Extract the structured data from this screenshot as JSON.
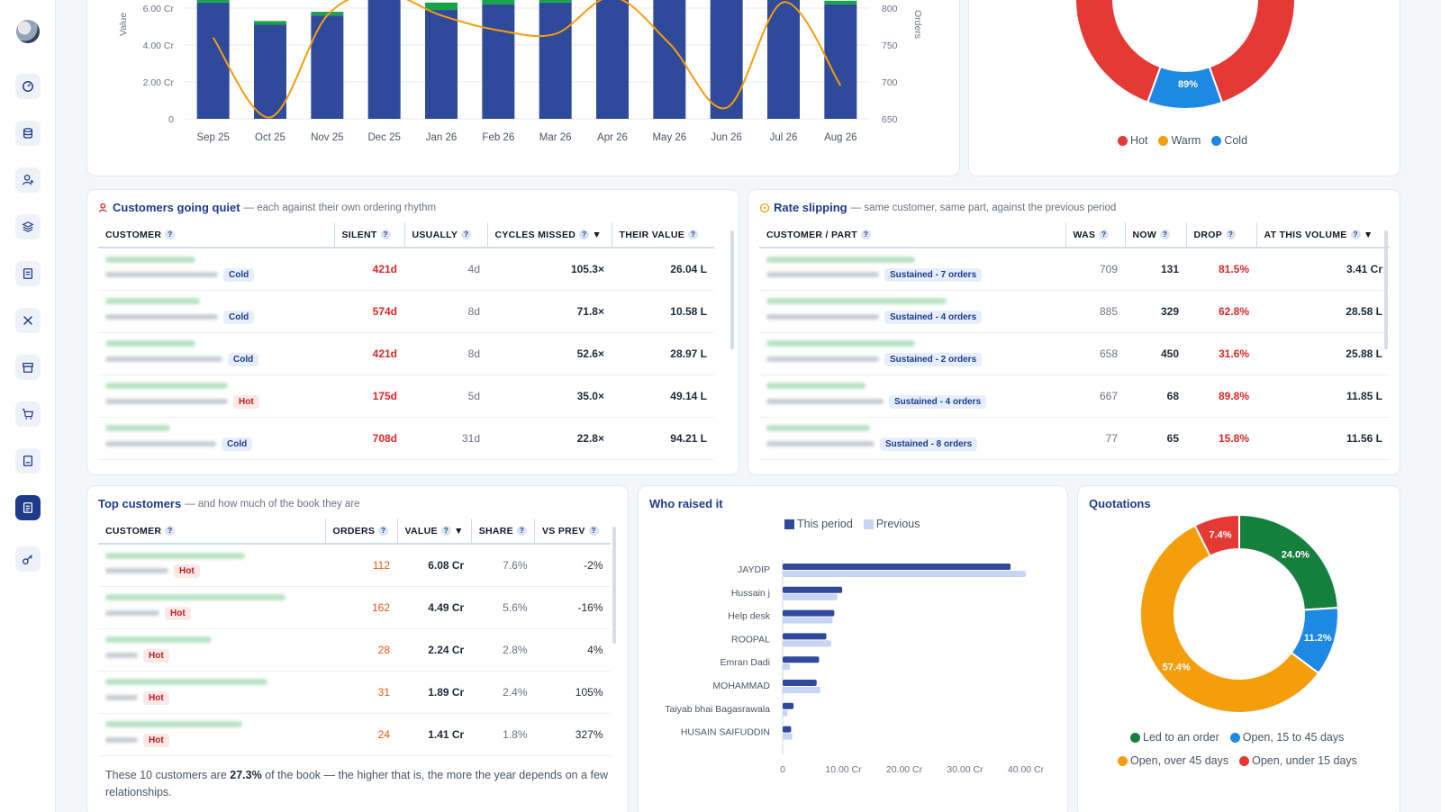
{
  "colors": {
    "navy": "#2f4a9a",
    "green": "#16a34a",
    "orange": "#f59e0b",
    "red": "#e53935",
    "blue": "#1e88e5",
    "light_blue": "#c7d4f3",
    "quote_green": "#15803d",
    "quote_blue": "#1e88e5",
    "quote_orange": "#f59e0b",
    "quote_red": "#e53935"
  },
  "sidebar": {
    "icons": [
      "logo-icon",
      "dashboard-icon",
      "database-icon",
      "user-add-icon",
      "layers-icon",
      "document-icon",
      "tools-icon",
      "archive-icon",
      "cart-icon",
      "ledger-icon",
      "report-icon",
      "key-icon"
    ]
  },
  "chart_data": [
    {
      "type": "bar",
      "categories": [
        "Sep 25",
        "Oct 25",
        "Nov 25",
        "Dec 25",
        "Jan 26",
        "Feb 26",
        "Mar 26",
        "Apr 26",
        "May 26",
        "Jun 26",
        "Jul 26",
        "Aug 26"
      ],
      "series": [
        {
          "values": [
            6.3,
            5.1,
            5.6,
            6.5,
            5.9,
            6.2,
            6.3,
            6.7,
            7.0,
            7.5,
            7.3,
            6.2
          ]
        },
        {
          "values": [
            0.4,
            0.2,
            0.2,
            0.5,
            0.4,
            0.3,
            0.2,
            0.4,
            0.5,
            0.4,
            0.6,
            0.2
          ]
        },
        {
          "values": [
            760,
            652,
            790,
            820,
            790,
            770,
            765,
            815,
            752,
            665,
            808,
            695
          ],
          "axis": "right"
        }
      ],
      "ylabel": "Value",
      "y2label": "Orders",
      "yticks": [
        "0",
        "2.00 Cr",
        "4.00 Cr",
        "6.00 Cr"
      ],
      "y2ticks": [
        "650",
        "700",
        "750",
        "800"
      ],
      "ylim": [
        0,
        7.5
      ],
      "y2lim": [
        650,
        830
      ]
    },
    {
      "type": "pie",
      "categories": [
        "Hot",
        "Warm",
        "Cold"
      ],
      "values": [
        89,
        0,
        11
      ],
      "labels": [
        "89%"
      ],
      "legend": [
        "Hot",
        "Warm",
        "Cold"
      ]
    },
    {
      "type": "bar",
      "orientation": "horizontal",
      "title": "Who raised it",
      "categories": [
        "JAYDIP",
        "Hussain j",
        "Help desk",
        "ROOPAL",
        "Emran Dadi",
        "MOHAMMAD",
        "Taiyab bhai Bagasrawala",
        "HUSAIN SAIFUDDIN"
      ],
      "series": [
        {
          "name": "This period",
          "values": [
            37.5,
            9.8,
            8.5,
            7.2,
            6.0,
            5.6,
            1.8,
            1.4
          ]
        },
        {
          "name": "Previous",
          "values": [
            40.0,
            9.0,
            8.2,
            8.0,
            1.2,
            6.2,
            0.8,
            1.6
          ]
        }
      ],
      "xticks": [
        "0",
        "10.00 Cr",
        "20.00 Cr",
        "30.00 Cr",
        "40.00 Cr"
      ],
      "xlim": [
        0,
        42
      ]
    },
    {
      "type": "pie",
      "title": "Quotations",
      "categories": [
        "Led to an order",
        "Open, 15 to 45 days",
        "Open, over 45 days",
        "Open, under 15 days"
      ],
      "values": [
        24.0,
        11.2,
        57.4,
        7.4
      ],
      "labels": [
        "24.0%",
        "11.2%",
        "57.4%",
        "7.4%"
      ]
    }
  ],
  "lead_legend": [
    {
      "label": "Hot",
      "color": "#e53935"
    },
    {
      "label": "Warm",
      "color": "#f59e0b"
    },
    {
      "label": "Cold",
      "color": "#1e88e5"
    }
  ],
  "quiet": {
    "title": "Customers going quiet",
    "subtitle": "— each against their own ordering rhythm",
    "headers": [
      "CUSTOMER",
      "SILENT",
      "USUALLY",
      "CYCLES MISSED",
      "THEIR VALUE"
    ],
    "sort_mark": "▼",
    "rows": [
      {
        "tag": "Cold",
        "silent": "421d",
        "usually": "4d",
        "cycles": "105.3×",
        "value": "26.04 L"
      },
      {
        "tag": "Cold",
        "silent": "574d",
        "usually": "8d",
        "cycles": "71.8×",
        "value": "10.58 L"
      },
      {
        "tag": "Cold",
        "silent": "421d",
        "usually": "8d",
        "cycles": "52.6×",
        "value": "28.97 L"
      },
      {
        "tag": "Hot",
        "silent": "175d",
        "usually": "5d",
        "cycles": "35.0×",
        "value": "49.14 L"
      },
      {
        "tag": "Cold",
        "silent": "708d",
        "usually": "31d",
        "cycles": "22.8×",
        "value": "94.21 L"
      }
    ]
  },
  "rate": {
    "title": "Rate slipping",
    "subtitle": "— same customer, same part, against the previous period",
    "headers": [
      "CUSTOMER / PART",
      "WAS",
      "NOW",
      "DROP",
      "AT THIS VOLUME"
    ],
    "sort_mark": "▼",
    "rows": [
      {
        "tag": "Sustained - 7 orders",
        "was": "709",
        "now": "131",
        "drop": "81.5%",
        "vol": "3.41 Cr"
      },
      {
        "tag": "Sustained - 4 orders",
        "was": "885",
        "now": "329",
        "drop": "62.8%",
        "vol": "28.58 L"
      },
      {
        "tag": "Sustained - 2 orders",
        "was": "658",
        "now": "450",
        "drop": "31.6%",
        "vol": "25.88 L"
      },
      {
        "tag": "Sustained - 4 orders",
        "was": "667",
        "now": "68",
        "drop": "89.8%",
        "vol": "11.85 L"
      },
      {
        "tag": "Sustained - 8 orders",
        "was": "77",
        "now": "65",
        "drop": "15.8%",
        "vol": "11.56 L"
      }
    ]
  },
  "top": {
    "title": "Top customers",
    "subtitle": "— and how much of the book they are",
    "headers": [
      "CUSTOMER",
      "ORDERS",
      "VALUE",
      "SHARE",
      "VS PREV"
    ],
    "sort_mark": "▼",
    "rows": [
      {
        "tag": "Hot",
        "orders": "112",
        "value": "6.08 Cr",
        "share": "7.6%",
        "prev": "-2%"
      },
      {
        "tag": "Hot",
        "orders": "162",
        "value": "4.49 Cr",
        "share": "5.6%",
        "prev": "-16%"
      },
      {
        "tag": "Hot",
        "orders": "28",
        "value": "2.24 Cr",
        "share": "2.8%",
        "prev": "4%"
      },
      {
        "tag": "Hot",
        "orders": "31",
        "value": "1.89 Cr",
        "share": "2.4%",
        "prev": "105%"
      },
      {
        "tag": "Hot",
        "orders": "24",
        "value": "1.41 Cr",
        "share": "1.8%",
        "prev": "327%"
      }
    ],
    "note_pre": "These 10 customers are ",
    "note_pct": "27.3%",
    "note_post": " of the book — the higher that is, the more the year depends on a few relationships."
  },
  "who": {
    "title": "Who raised it",
    "legend": [
      "This period",
      "Previous"
    ]
  },
  "quote": {
    "title": "Quotations",
    "legend": [
      "Led to an order",
      "Open, 15 to 45 days",
      "Open, over 45 days",
      "Open, under 15 days"
    ]
  }
}
